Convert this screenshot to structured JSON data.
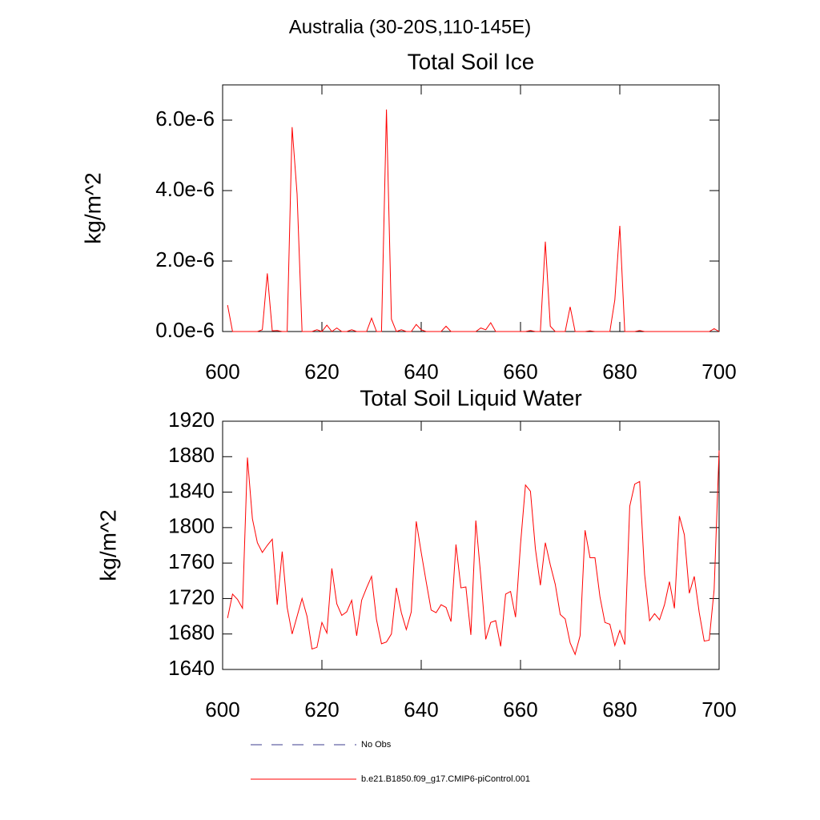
{
  "title": "Australia (30-20S,110-145E)",
  "legend": [
    {
      "name": "No Obs",
      "color": "#3c3c8c",
      "dashed": true
    },
    {
      "name": "b.e21.B1850.f09_g17.CMIP6-piControl.001",
      "color": "#ff0000",
      "dashed": false
    }
  ],
  "chart_data": [
    {
      "type": "line",
      "title": "Total Soil Ice",
      "y_label": "kg/m^2",
      "x": [
        601,
        602,
        603,
        604,
        605,
        606,
        607,
        608,
        609,
        610,
        611,
        612,
        613,
        614,
        615,
        616,
        617,
        618,
        619,
        620,
        621,
        622,
        623,
        624,
        625,
        626,
        627,
        628,
        629,
        630,
        631,
        632,
        633,
        634,
        635,
        636,
        637,
        638,
        639,
        640,
        641,
        642,
        643,
        644,
        645,
        646,
        647,
        648,
        649,
        650,
        651,
        652,
        653,
        654,
        655,
        656,
        657,
        658,
        659,
        660,
        661,
        662,
        663,
        664,
        665,
        666,
        667,
        668,
        669,
        670,
        671,
        672,
        673,
        674,
        675,
        676,
        677,
        678,
        679,
        680,
        681,
        682,
        683,
        684,
        685,
        686,
        687,
        688,
        689,
        690,
        691,
        692,
        693,
        694,
        695,
        696,
        697,
        698,
        699,
        700
      ],
      "series": [
        {
          "name": "b.e21.B1850.f09_g17.CMIP6-piControl.001",
          "color": "#ff0000",
          "values": [
            7.5e-07,
            0,
            0,
            0,
            0,
            0,
            0,
            5e-08,
            1.65e-06,
            2e-08,
            3e-08,
            0,
            0,
            5.8e-06,
            3.9e-06,
            0,
            0,
            0,
            5e-08,
            0,
            1.8e-07,
            0,
            1e-07,
            0,
            0,
            5e-08,
            0,
            0,
            0,
            3.8e-07,
            0,
            0,
            6.3e-06,
            3.5e-07,
            0,
            5e-08,
            0,
            0,
            2e-07,
            5e-08,
            0,
            0,
            0,
            0,
            1.5e-07,
            0,
            0,
            0,
            0,
            0,
            0,
            1e-07,
            5e-08,
            2.5e-07,
            0,
            0,
            0,
            0,
            0,
            0,
            0,
            3e-08,
            0,
            0,
            2.55e-06,
            1.5e-07,
            0,
            0,
            0,
            7e-07,
            0,
            0,
            0,
            2e-08,
            0,
            0,
            0,
            0,
            9e-07,
            3e-06,
            0,
            0,
            0,
            3e-08,
            0,
            0,
            0,
            0,
            0,
            0,
            0,
            0,
            0,
            0,
            0,
            0,
            0,
            0,
            8e-08,
            0
          ]
        }
      ],
      "xlim": [
        600,
        700
      ],
      "xticks": [
        600,
        620,
        640,
        660,
        680,
        700
      ],
      "ylim": [
        0,
        7e-06
      ],
      "yticks": [
        {
          "value": 0,
          "label": "0.0e-6"
        },
        {
          "value": 2e-06,
          "label": "2.0e-6"
        },
        {
          "value": 4e-06,
          "label": "4.0e-6"
        },
        {
          "value": 6e-06,
          "label": "6.0e-6"
        }
      ]
    },
    {
      "type": "line",
      "title": "Total Soil Liquid Water",
      "y_label": "kg/m^2",
      "x": [
        601,
        602,
        603,
        604,
        605,
        606,
        607,
        608,
        609,
        610,
        611,
        612,
        613,
        614,
        615,
        616,
        617,
        618,
        619,
        620,
        621,
        622,
        623,
        624,
        625,
        626,
        627,
        628,
        629,
        630,
        631,
        632,
        633,
        634,
        635,
        636,
        637,
        638,
        639,
        640,
        641,
        642,
        643,
        644,
        645,
        646,
        647,
        648,
        649,
        650,
        651,
        652,
        653,
        654,
        655,
        656,
        657,
        658,
        659,
        660,
        661,
        662,
        663,
        664,
        665,
        666,
        667,
        668,
        669,
        670,
        671,
        672,
        673,
        674,
        675,
        676,
        677,
        678,
        679,
        680,
        681,
        682,
        683,
        684,
        685,
        686,
        687,
        688,
        689,
        690,
        691,
        692,
        693,
        694,
        695,
        696,
        697,
        698,
        699,
        700
      ],
      "series": [
        {
          "name": "b.e21.B1850.f09_g17.CMIP6-piControl.001",
          "color": "#ff0000",
          "values": [
            1698,
            1725,
            1719,
            1709,
            1879,
            1810,
            1783,
            1772,
            1780,
            1787,
            1713,
            1773,
            1710,
            1680,
            1700,
            1720,
            1700,
            1663,
            1665,
            1693,
            1681,
            1754,
            1714,
            1701,
            1705,
            1718,
            1678,
            1718,
            1732,
            1745,
            1696,
            1669,
            1671,
            1680,
            1732,
            1704,
            1685,
            1705,
            1807,
            1772,
            1739,
            1707,
            1704,
            1713,
            1710,
            1694,
            1781,
            1732,
            1733,
            1679,
            1808,
            1745,
            1674,
            1693,
            1695,
            1666,
            1725,
            1728,
            1699,
            1781,
            1848,
            1841,
            1776,
            1735,
            1783,
            1758,
            1736,
            1702,
            1697,
            1670,
            1657,
            1678,
            1797,
            1766,
            1766,
            1722,
            1693,
            1691,
            1667,
            1684,
            1668,
            1824,
            1849,
            1852,
            1747,
            1695,
            1703,
            1696,
            1713,
            1739,
            1709,
            1813,
            1792,
            1726,
            1745,
            1704,
            1672,
            1673,
            1730,
            1887
          ]
        }
      ],
      "xlim": [
        600,
        700
      ],
      "xticks": [
        600,
        620,
        640,
        660,
        680,
        700
      ],
      "ylim": [
        1640,
        1920
      ],
      "yticks": [
        1640,
        1680,
        1720,
        1760,
        1800,
        1840,
        1880,
        1920
      ]
    }
  ]
}
